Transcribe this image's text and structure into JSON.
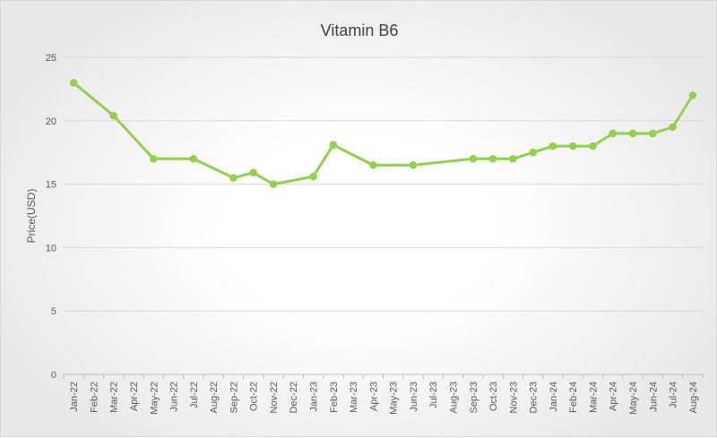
{
  "chart_data": {
    "type": "line",
    "title": "Vitamin B6",
    "xlabel": "",
    "ylabel": "Price(USD)",
    "ylim": [
      0,
      25
    ],
    "yticks": [
      0,
      5,
      10,
      15,
      20,
      25
    ],
    "grid": true,
    "legend": "none",
    "line_color": "#92D050",
    "categories": [
      "Jan-22",
      "Feb-22",
      "Mar-22",
      "Apr-22",
      "May-22",
      "Jun-22",
      "Jul-22",
      "Aug-22",
      "Sep-22",
      "Oct-22",
      "Nov-22",
      "Dec-22",
      "Jan-23",
      "Feb-23",
      "Mar-23",
      "Apr-23",
      "May-23",
      "Jun-23",
      "Jul-23",
      "Aug-23",
      "Sep-23",
      "Oct-23",
      "Nov-23",
      "Dec-23",
      "Jan-24",
      "Feb-24",
      "Mar-24",
      "Apr-24",
      "May-24",
      "Jun-24",
      "Jul-24",
      "Aug-24"
    ],
    "points": [
      {
        "x": "Jan-22",
        "y": 23.0
      },
      {
        "x": "Mar-22",
        "y": 20.4
      },
      {
        "x": "May-22",
        "y": 17.0
      },
      {
        "x": "Jul-22",
        "y": 17.0
      },
      {
        "x": "Sep-22",
        "y": 15.5
      },
      {
        "x": "Oct-22",
        "y": 15.9
      },
      {
        "x": "Nov-22",
        "y": 15.0
      },
      {
        "x": "Jan-23",
        "y": 15.6
      },
      {
        "x": "Feb-23",
        "y": 18.1
      },
      {
        "x": "Apr-23",
        "y": 16.5
      },
      {
        "x": "Jun-23",
        "y": 16.5
      },
      {
        "x": "Sep-23",
        "y": 17.0
      },
      {
        "x": "Oct-23",
        "y": 17.0
      },
      {
        "x": "Nov-23",
        "y": 17.0
      },
      {
        "x": "Dec-23",
        "y": 17.5
      },
      {
        "x": "Jan-24",
        "y": 18.0
      },
      {
        "x": "Feb-24",
        "y": 18.0
      },
      {
        "x": "Mar-24",
        "y": 18.0
      },
      {
        "x": "Apr-24",
        "y": 19.0
      },
      {
        "x": "May-24",
        "y": 19.0
      },
      {
        "x": "Jun-24",
        "y": 19.0
      },
      {
        "x": "Jul-24",
        "y": 19.5
      },
      {
        "x": "Aug-24",
        "y": 22.0
      }
    ]
  }
}
